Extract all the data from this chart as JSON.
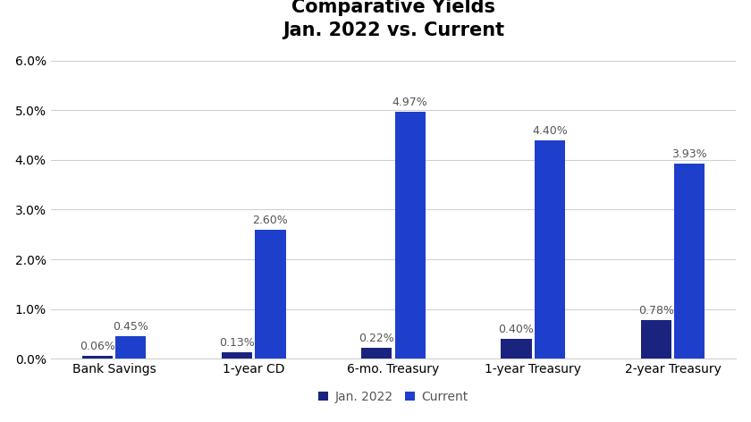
{
  "title": "Comparative Yields\nJan. 2022 vs. Current",
  "categories": [
    "Bank Savings",
    "1-year CD",
    "6-mo. Treasury",
    "1-year Treasury",
    "2-year Treasury"
  ],
  "jan2022_values": [
    0.0006,
    0.0013,
    0.0022,
    0.004,
    0.0078
  ],
  "current_values": [
    0.0045,
    0.026,
    0.0497,
    0.044,
    0.0393
  ],
  "jan2022_labels": [
    "0.06%",
    "0.13%",
    "0.22%",
    "0.40%",
    "0.78%"
  ],
  "current_labels": [
    "0.45%",
    "2.60%",
    "4.97%",
    "4.40%",
    "3.93%"
  ],
  "color_jan2022": "#1a237e",
  "color_current": "#1e3fcc",
  "legend_jan2022": "Jan. 2022",
  "legend_current": "Current",
  "ylim": [
    0,
    0.062
  ],
  "yticks": [
    0.0,
    0.01,
    0.02,
    0.03,
    0.04,
    0.05,
    0.06
  ],
  "background_color": "#ffffff",
  "title_fontsize": 15,
  "bar_width": 0.22,
  "label_fontsize": 9,
  "tick_fontsize": 10,
  "legend_fontsize": 10
}
